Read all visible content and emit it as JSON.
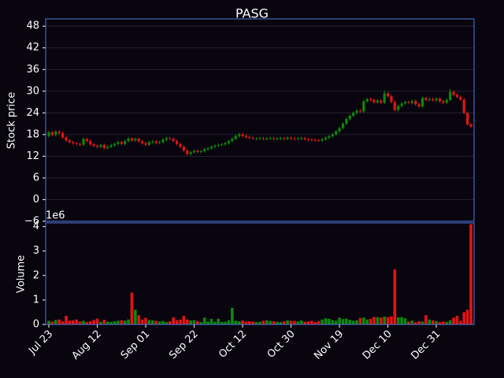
{
  "chart_data": {
    "type": "candlestick",
    "title": "PASG",
    "ylabel": "Stock price",
    "volume_ylabel": "Volume",
    "volume_offset_label": "1e6",
    "categories": [
      "Jul 23",
      null,
      null,
      null,
      null,
      null,
      null,
      null,
      null,
      null,
      null,
      null,
      null,
      null,
      "Aug 12",
      null,
      null,
      null,
      null,
      null,
      null,
      null,
      null,
      null,
      null,
      null,
      null,
      null,
      "Sep 01",
      null,
      null,
      null,
      null,
      null,
      null,
      null,
      null,
      null,
      null,
      null,
      null,
      null,
      "Sep 22",
      null,
      null,
      null,
      null,
      null,
      null,
      null,
      null,
      null,
      null,
      null,
      null,
      null,
      "Oct 12",
      null,
      null,
      null,
      null,
      null,
      null,
      null,
      null,
      null,
      null,
      null,
      null,
      null,
      "Oct 30",
      null,
      null,
      null,
      null,
      null,
      null,
      null,
      null,
      null,
      null,
      null,
      null,
      null,
      "Nov 19",
      null,
      null,
      null,
      null,
      null,
      null,
      null,
      null,
      null,
      null,
      null,
      null,
      null,
      "Dec 10",
      null,
      null,
      null,
      null,
      null,
      null,
      null,
      null,
      null,
      null,
      null,
      null,
      null,
      "Dec 31",
      null,
      null,
      null,
      null,
      null,
      null,
      null,
      null,
      null,
      null
    ],
    "open": [
      17.6,
      18.6,
      17.9,
      18.8,
      18.4,
      17.2,
      16.4,
      15.9,
      15.6,
      15.4,
      15.2,
      16.8,
      16.2,
      15.3,
      14.9,
      14.6,
      15.1,
      14.3,
      14.6,
      15.0,
      15.4,
      15.9,
      15.4,
      16.2,
      16.9,
      16.4,
      16.8,
      16.1,
      15.6,
      15.2,
      15.9,
      16.1,
      15.7,
      15.9,
      16.6,
      17.0,
      16.8,
      16.2,
      15.4,
      14.6,
      13.6,
      12.6,
      13.1,
      13.5,
      13.2,
      13.4,
      13.9,
      14.2,
      14.6,
      14.9,
      15.1,
      15.3,
      15.6,
      16.2,
      16.8,
      17.6,
      18.1,
      17.6,
      17.3,
      17.1,
      16.9,
      16.9,
      17.0,
      16.8,
      16.9,
      17.0,
      16.8,
      16.9,
      17.0,
      16.8,
      17.1,
      16.9,
      16.8,
      16.9,
      17.0,
      16.7,
      16.6,
      16.5,
      16.4,
      16.3,
      16.7,
      17.1,
      17.5,
      18.1,
      18.9,
      19.8,
      21.0,
      22.3,
      23.2,
      24.0,
      24.6,
      24.4,
      27.2,
      27.8,
      27.6,
      26.9,
      27.4,
      26.8,
      29.4,
      28.6,
      27.0,
      24.8,
      25.9,
      26.6,
      27.0,
      26.8,
      27.3,
      26.4,
      25.8,
      28.1,
      27.6,
      27.8,
      27.5,
      27.9,
      27.2,
      26.8,
      27.6,
      29.8,
      29.0,
      28.4,
      27.7,
      24.0,
      20.8
    ],
    "high": [
      19.0,
      19.0,
      19.2,
      19.2,
      18.8,
      17.6,
      16.8,
      16.3,
      16.0,
      15.8,
      17.2,
      17.2,
      16.6,
      15.7,
      15.3,
      15.5,
      15.5,
      15.0,
      15.4,
      15.8,
      16.3,
      16.3,
      16.6,
      17.3,
      17.3,
      17.2,
      17.2,
      16.5,
      16.0,
      16.3,
      16.5,
      16.5,
      16.3,
      17.0,
      17.4,
      17.4,
      17.2,
      16.6,
      15.8,
      15.0,
      14.0,
      13.5,
      13.9,
      13.9,
      13.8,
      14.3,
      14.6,
      15.0,
      15.3,
      15.5,
      15.7,
      16.0,
      16.6,
      17.2,
      18.0,
      18.5,
      18.5,
      18.0,
      17.7,
      17.5,
      17.3,
      17.4,
      17.4,
      17.3,
      17.4,
      17.4,
      17.3,
      17.4,
      17.4,
      17.5,
      17.5,
      17.3,
      17.3,
      17.4,
      17.4,
      17.1,
      17.0,
      16.9,
      16.8,
      17.1,
      17.5,
      17.9,
      18.5,
      19.3,
      20.2,
      21.4,
      22.7,
      23.6,
      24.4,
      25.0,
      25.0,
      27.6,
      28.2,
      28.2,
      28.0,
      27.8,
      27.8,
      30.2,
      29.8,
      29.0,
      27.4,
      26.3,
      27.0,
      27.4,
      27.4,
      27.7,
      27.7,
      26.8,
      28.5,
      28.5,
      28.2,
      28.2,
      28.3,
      28.3,
      27.6,
      28.0,
      30.6,
      30.2,
      29.4,
      28.8,
      28.1,
      24.4,
      21.2
    ],
    "low": [
      17.2,
      17.5,
      17.5,
      18.0,
      16.8,
      16.0,
      15.5,
      15.2,
      15.0,
      14.8,
      14.8,
      15.8,
      14.9,
      14.5,
      14.2,
      14.2,
      13.9,
      13.9,
      14.2,
      14.6,
      15.0,
      15.0,
      15.0,
      15.8,
      16.0,
      16.0,
      15.7,
      15.2,
      14.8,
      14.8,
      15.5,
      15.3,
      15.3,
      15.5,
      16.2,
      16.4,
      15.8,
      15.0,
      14.2,
      13.2,
      12.2,
      12.2,
      12.7,
      12.8,
      12.8,
      13.0,
      13.5,
      13.8,
      14.2,
      14.5,
      14.7,
      14.9,
      15.2,
      15.8,
      16.4,
      17.2,
      17.2,
      16.9,
      16.7,
      16.5,
      16.5,
      16.5,
      16.4,
      16.4,
      16.5,
      16.4,
      16.4,
      16.5,
      16.4,
      16.4,
      16.5,
      16.4,
      16.4,
      16.5,
      16.3,
      16.2,
      16.1,
      16.0,
      15.9,
      15.9,
      16.3,
      16.7,
      17.1,
      17.7,
      18.5,
      19.4,
      20.6,
      21.9,
      22.8,
      23.6,
      24.0,
      24.0,
      26.8,
      27.2,
      26.5,
      26.5,
      26.4,
      26.4,
      28.2,
      26.6,
      24.4,
      24.4,
      25.5,
      26.2,
      26.4,
      26.4,
      26.0,
      25.4,
      25.4,
      27.2,
      27.2,
      27.1,
      27.1,
      26.8,
      26.4,
      26.4,
      27.2,
      28.6,
      28.0,
      27.3,
      23.6,
      20.4,
      19.8
    ],
    "close": [
      18.6,
      17.9,
      18.8,
      18.4,
      17.2,
      16.4,
      15.9,
      15.6,
      15.4,
      15.2,
      16.8,
      16.2,
      15.3,
      14.9,
      14.6,
      15.1,
      14.3,
      14.6,
      15.0,
      15.4,
      15.9,
      15.4,
      16.2,
      16.9,
      16.4,
      16.8,
      16.1,
      15.6,
      15.2,
      15.9,
      16.1,
      15.7,
      15.9,
      16.6,
      17.0,
      16.8,
      16.2,
      15.4,
      14.6,
      13.6,
      12.6,
      13.1,
      13.5,
      13.2,
      13.4,
      13.9,
      14.2,
      14.6,
      14.9,
      15.1,
      15.3,
      15.6,
      16.2,
      16.8,
      17.6,
      18.1,
      17.6,
      17.3,
      17.1,
      16.9,
      16.9,
      17.0,
      16.8,
      16.9,
      17.0,
      16.8,
      16.9,
      17.0,
      16.8,
      17.1,
      16.9,
      16.8,
      16.9,
      17.0,
      16.7,
      16.6,
      16.5,
      16.4,
      16.3,
      16.7,
      17.1,
      17.5,
      18.1,
      18.9,
      19.8,
      21.0,
      22.3,
      23.2,
      24.0,
      24.6,
      24.4,
      27.2,
      27.8,
      27.6,
      26.9,
      27.4,
      26.8,
      29.4,
      28.6,
      27.0,
      24.8,
      25.9,
      26.6,
      27.0,
      26.8,
      27.3,
      26.4,
      25.8,
      28.1,
      27.6,
      27.8,
      27.5,
      27.9,
      27.2,
      26.8,
      27.6,
      29.8,
      29.0,
      28.4,
      27.7,
      24.0,
      20.8,
      20.2
    ],
    "volume": [
      150000,
      120000,
      180000,
      200000,
      130000,
      350000,
      160000,
      170000,
      200000,
      120000,
      150000,
      100000,
      130000,
      180000,
      240000,
      110000,
      190000,
      120000,
      100000,
      130000,
      150000,
      170000,
      160000,
      200000,
      1300000,
      600000,
      380000,
      200000,
      270000,
      180000,
      170000,
      150000,
      120000,
      140000,
      100000,
      130000,
      290000,
      180000,
      200000,
      350000,
      200000,
      160000,
      180000,
      140000,
      100000,
      280000,
      120000,
      230000,
      110000,
      230000,
      100000,
      110000,
      170000,
      680000,
      150000,
      130000,
      160000,
      110000,
      130000,
      120000,
      100000,
      110000,
      150000,
      170000,
      140000,
      130000,
      110000,
      100000,
      130000,
      170000,
      150000,
      140000,
      120000,
      160000,
      110000,
      130000,
      150000,
      100000,
      140000,
      200000,
      250000,
      230000,
      180000,
      150000,
      280000,
      220000,
      240000,
      190000,
      150000,
      170000,
      260000,
      280000,
      200000,
      230000,
      310000,
      300000,
      280000,
      320000,
      300000,
      330000,
      2250000,
      290000,
      300000,
      250000,
      120000,
      160000,
      90000,
      130000,
      120000,
      380000,
      200000,
      170000,
      140000,
      100000,
      120000,
      100000,
      170000,
      280000,
      350000,
      150000,
      500000,
      600000,
      4100000
    ],
    "up_color": "#0b8a0b",
    "down_color": "#e31414",
    "ylim": [
      -6,
      50
    ],
    "yticks": [
      {
        "value": -6,
        "label": "−6"
      },
      0,
      6,
      12,
      18,
      24,
      30,
      36,
      42,
      48
    ],
    "volume_ylim": [
      0,
      4150000
    ],
    "volume_yticks": [
      {
        "value": 0,
        "label": "0"
      },
      {
        "value": 1000000,
        "label": "1"
      },
      {
        "value": 2000000,
        "label": "2"
      },
      {
        "value": 3000000,
        "label": "3"
      },
      {
        "value": 4000000,
        "label": "4"
      }
    ],
    "grid": true
  }
}
